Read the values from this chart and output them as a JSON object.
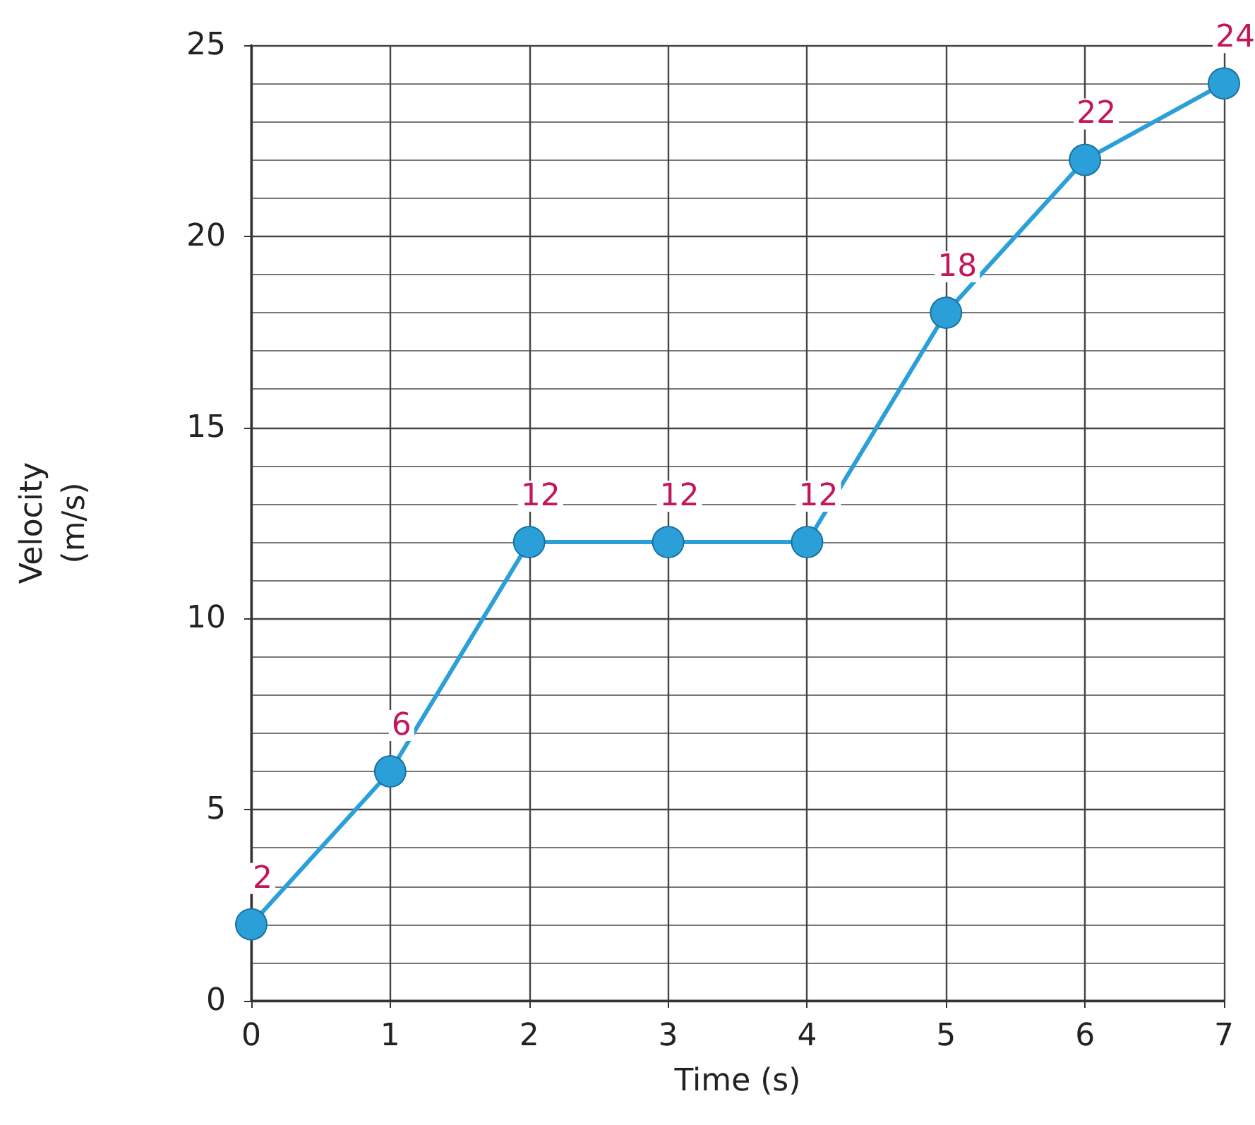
{
  "chart_data": {
    "type": "line",
    "xlabel": "Time (s)",
    "ylabel": "Velocity\n(m/s)",
    "x": [
      0,
      1,
      2,
      3,
      4,
      5,
      6,
      7
    ],
    "series": [
      {
        "color": "#2b9fd8",
        "values": [
          2,
          6,
          12,
          12,
          12,
          18,
          22,
          24
        ]
      }
    ],
    "xlim": [
      0,
      7
    ],
    "xticks": [
      0,
      1,
      2,
      3,
      4,
      5,
      6,
      7
    ],
    "ylim": [
      0,
      25
    ],
    "yticks": [
      0,
      5,
      10,
      15,
      20,
      25
    ],
    "grid": true,
    "marker": "circle",
    "line_style": "solid",
    "data_labels": true
  }
}
